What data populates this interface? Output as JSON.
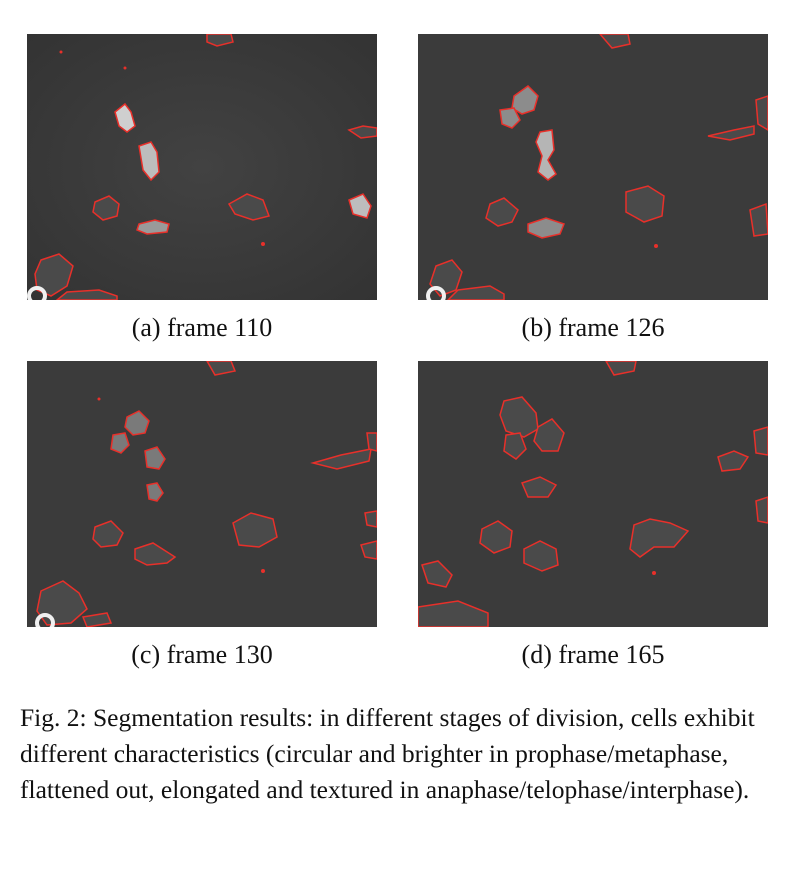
{
  "figure": {
    "panels": [
      {
        "label": "(a) frame 110"
      },
      {
        "label": "(b) frame 126"
      },
      {
        "label": "(c) frame 130"
      },
      {
        "label": "(d) frame 165"
      }
    ],
    "caption": "Fig. 2: Segmentation results: in different stages of division, cells exhibit different characteristics (circular and brighter in prophase/metaphase, flattened out, elongated and textured in anaphase/telophase/interphase).",
    "colors": {
      "background": "#3a3a3a",
      "segmentation_contour": "#e8302a",
      "cell_highlight": "#e9e9e9"
    }
  }
}
